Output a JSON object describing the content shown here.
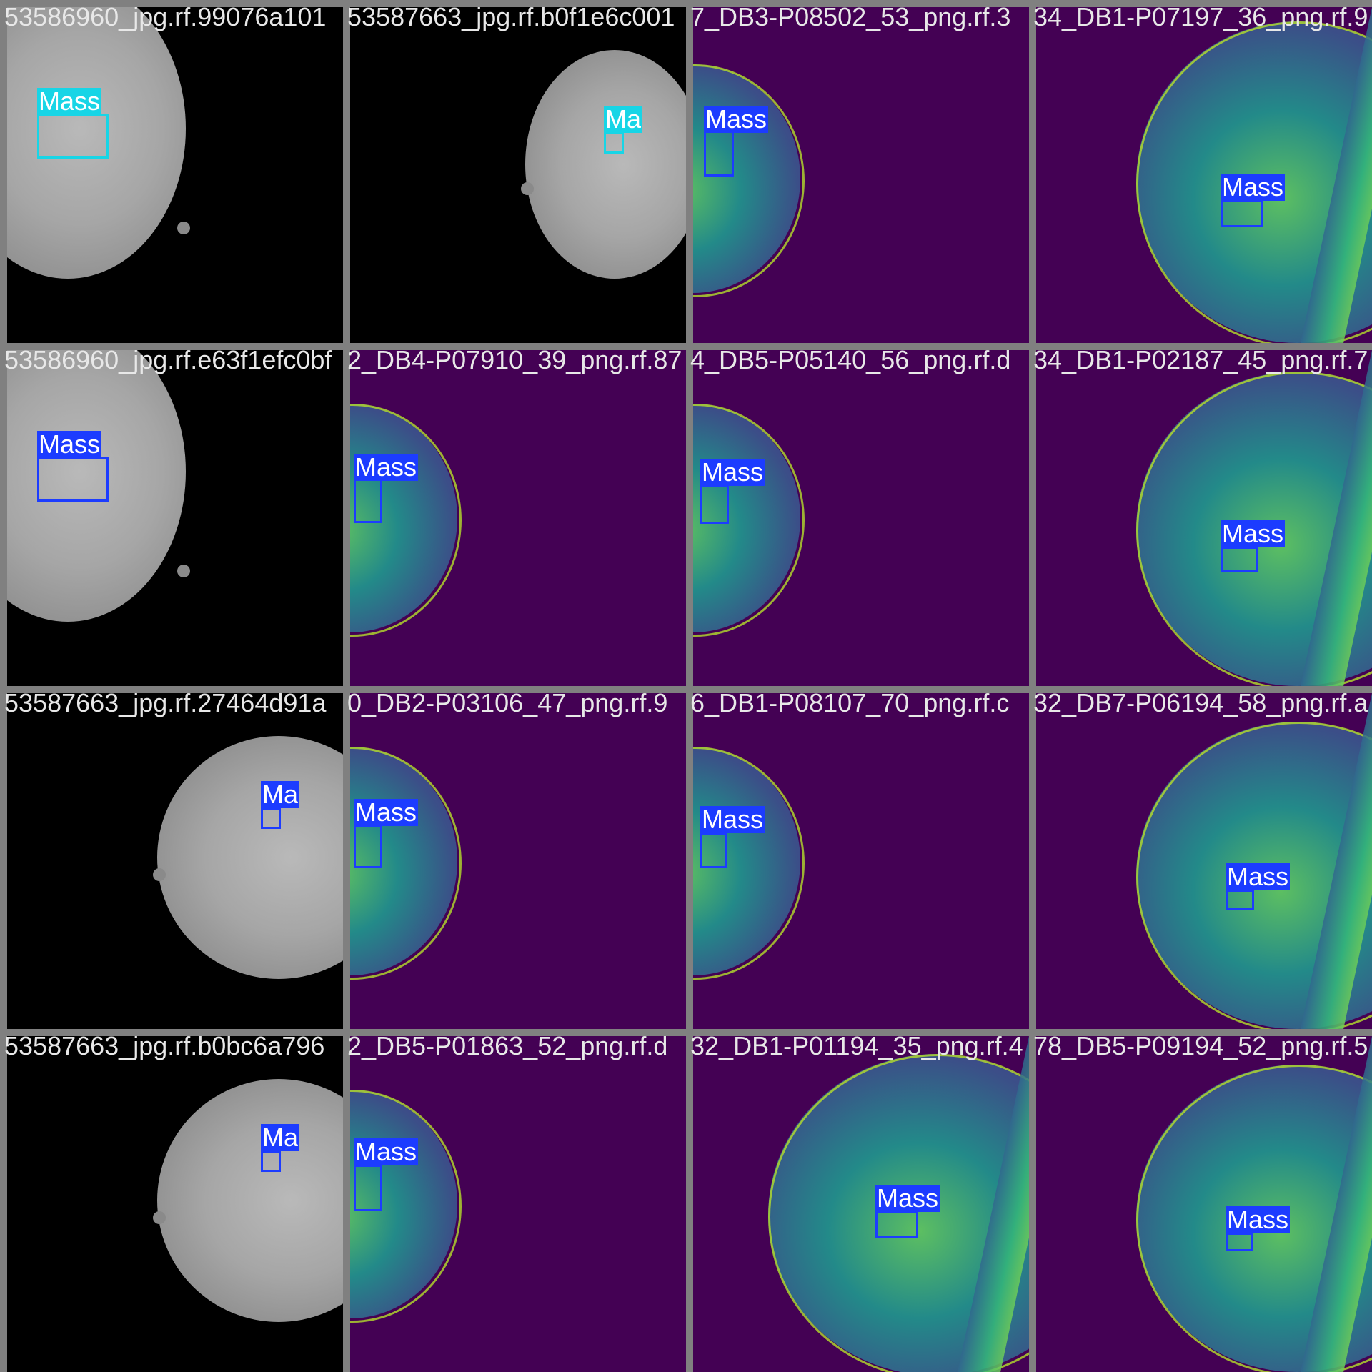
{
  "annotation_label": "Mass",
  "colors": {
    "box_blue": "#1c3cff",
    "box_cyan": "#17d5e6",
    "viridis_bg": "#440154",
    "grid_border": "#808080"
  },
  "tiles": [
    {
      "filename": "53586960_jpg.rf.99076a101",
      "style": "gray",
      "label": "Mass"
    },
    {
      "filename": "53587663_jpg.rf.b0f1e6c001",
      "style": "gray",
      "label": "Ma"
    },
    {
      "filename": "7_DB3-P08502_53_png.rf.3",
      "style": "viridis",
      "label": "Mass"
    },
    {
      "filename": "34_DB1-P07197_36_png.rf.9",
      "style": "viridis",
      "label": "Mass"
    },
    {
      "filename": "53586960_jpg.rf.e63f1efc0bf",
      "style": "gray",
      "label": "Mass"
    },
    {
      "filename": "2_DB4-P07910_39_png.rf.87",
      "style": "viridis",
      "label": "Mass"
    },
    {
      "filename": "4_DB5-P05140_56_png.rf.d",
      "style": "viridis",
      "label": "Mass"
    },
    {
      "filename": "34_DB1-P02187_45_png.rf.7",
      "style": "viridis",
      "label": "Mass"
    },
    {
      "filename": "53587663_jpg.rf.27464d91a",
      "style": "gray",
      "label": "Ma"
    },
    {
      "filename": "0_DB2-P03106_47_png.rf.9",
      "style": "viridis",
      "label": "Mass"
    },
    {
      "filename": "6_DB1-P08107_70_png.rf.c",
      "style": "viridis",
      "label": "Mass"
    },
    {
      "filename": "32_DB7-P06194_58_png.rf.a",
      "style": "viridis",
      "label": "Mass"
    },
    {
      "filename": "53587663_jpg.rf.b0bc6a796",
      "style": "gray",
      "label": "Ma"
    },
    {
      "filename": "2_DB5-P01863_52_png.rf.d",
      "style": "viridis",
      "label": "Mass"
    },
    {
      "filename": "32_DB1-P01194_35_png.rf.4",
      "style": "viridis",
      "label": "Mass"
    },
    {
      "filename": "78_DB5-P09194_52_png.rf.5",
      "style": "viridis",
      "label": "Mass"
    }
  ]
}
